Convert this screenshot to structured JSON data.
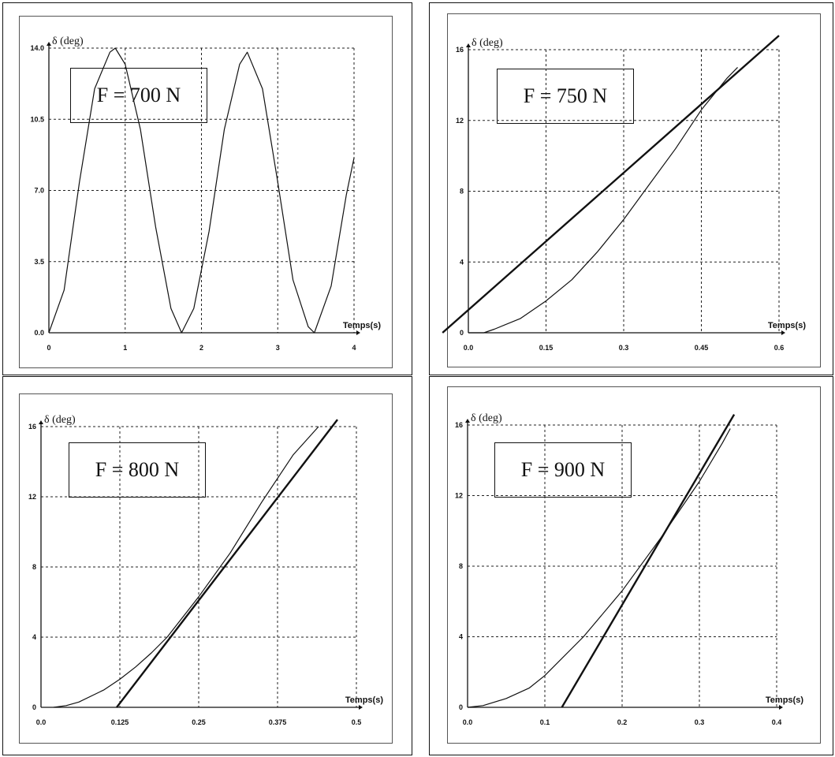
{
  "chart_data": [
    {
      "type": "line",
      "force_label": "F = 700 N",
      "ylabel": "δ (deg)",
      "xlabel": "Temps(s)",
      "xlim": [
        0,
        4
      ],
      "ylim": [
        0,
        14
      ],
      "x_ticks": [
        "0",
        "1",
        "2",
        "3",
        "4"
      ],
      "y_ticks": [
        "0.0",
        "3.5",
        "7.0",
        "10.5",
        "14.0"
      ],
      "grid": true,
      "series": [
        {
          "x": [
            0,
            0.2,
            0.4,
            0.6,
            0.8,
            0.87,
            1.0,
            1.2,
            1.4,
            1.6,
            1.74,
            1.9,
            2.1,
            2.3,
            2.5,
            2.6,
            2.8,
            3.0,
            3.2,
            3.4,
            3.48,
            3.7,
            3.9,
            4.0
          ],
          "y": [
            0,
            2.1,
            7.4,
            12.0,
            13.8,
            14.0,
            13.2,
            10.0,
            5.2,
            1.2,
            0,
            1.2,
            5.0,
            10.0,
            13.2,
            13.8,
            12.0,
            7.4,
            2.6,
            0.3,
            0,
            2.3,
            6.8,
            8.6
          ]
        }
      ]
    },
    {
      "type": "line",
      "force_label": "F = 750 N",
      "ylabel": "δ (deg)",
      "xlabel": "Temps(s)",
      "xlim": [
        0,
        0.6
      ],
      "ylim": [
        0,
        16
      ],
      "x_ticks": [
        "0.0",
        "0.15",
        "0.3",
        "0.45",
        "0.6"
      ],
      "y_ticks": [
        "0",
        "4",
        "8",
        "12",
        "16"
      ],
      "grid": true,
      "series": [
        {
          "x": [
            0,
            0.03,
            0.05,
            0.1,
            0.15,
            0.2,
            0.25,
            0.3,
            0.35,
            0.4,
            0.45,
            0.5,
            0.52
          ],
          "y": [
            0,
            0,
            0.2,
            0.8,
            1.8,
            3.0,
            4.6,
            6.4,
            8.4,
            10.4,
            12.6,
            14.4,
            15.0
          ]
        },
        {
          "x": [
            -0.05,
            0.6
          ],
          "y": [
            0,
            16.8
          ]
        }
      ]
    },
    {
      "type": "line",
      "force_label": "F = 800 N",
      "ylabel": "δ (deg)",
      "xlabel": "Temps(s)",
      "xlim": [
        0,
        0.5
      ],
      "ylim": [
        0,
        16
      ],
      "x_ticks": [
        "0.0",
        "0.125",
        "0.25",
        "0.375",
        "0.5"
      ],
      "y_ticks": [
        "0",
        "4",
        "8",
        "12",
        "16"
      ],
      "grid": true,
      "series": [
        {
          "x": [
            0.02,
            0.04,
            0.06,
            0.1,
            0.125,
            0.15,
            0.175,
            0.2,
            0.25,
            0.3,
            0.35,
            0.4,
            0.44
          ],
          "y": [
            0,
            0.1,
            0.3,
            1.0,
            1.6,
            2.3,
            3.1,
            4.0,
            6.3,
            8.8,
            11.7,
            14.4,
            16.0
          ]
        },
        {
          "x": [
            0.12,
            0.47
          ],
          "y": [
            0,
            16.4
          ]
        }
      ]
    },
    {
      "type": "line",
      "force_label": "F = 900 N",
      "ylabel": "δ (deg)",
      "xlabel": "Temps(s)",
      "xlim": [
        0,
        0.4
      ],
      "ylim": [
        0,
        16
      ],
      "x_ticks": [
        "0.0",
        "0.1",
        "0.2",
        "0.3",
        "0.4"
      ],
      "y_ticks": [
        "0",
        "4",
        "8",
        "12",
        "16"
      ],
      "grid": true,
      "series": [
        {
          "x": [
            0,
            0.02,
            0.05,
            0.08,
            0.1,
            0.15,
            0.2,
            0.25,
            0.3,
            0.33,
            0.34
          ],
          "y": [
            0,
            0.1,
            0.5,
            1.1,
            1.8,
            4.0,
            6.6,
            9.6,
            12.8,
            15.0,
            15.8
          ]
        },
        {
          "x": [
            0.122,
            0.345
          ],
          "y": [
            0,
            16.6
          ]
        }
      ]
    }
  ]
}
